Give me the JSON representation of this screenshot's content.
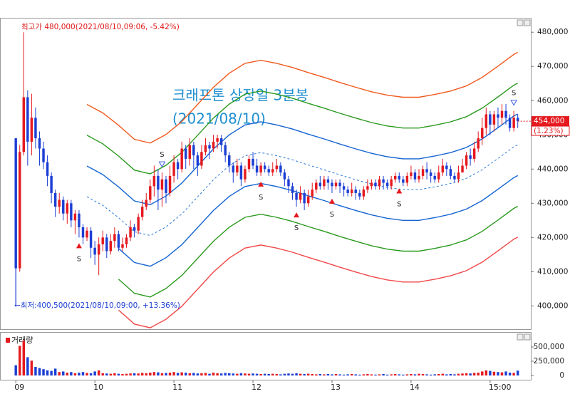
{
  "chart_data": {
    "type": "candlestick",
    "title": "크래프톤 상장일 3분봉",
    "subtitle": "(2021/08/10)",
    "annotations": {
      "high": "최고가 480,000(2021/08/10,09:06, -5.42%)",
      "low": "←최저:400,500(2021/08/10,09:00, +13.36%)"
    },
    "last_price": {
      "value": 454000,
      "label": "454,000"
    },
    "last_change": "(1.23%)",
    "up_color": "#e5191e",
    "down_color": "#1c3fd4",
    "xlim": [
      -4,
      130.3
    ],
    "xticks": [
      {
        "value": 0,
        "label": "09"
      },
      {
        "value": 20,
        "label": "10"
      },
      {
        "value": 40,
        "label": "11"
      },
      {
        "value": 60,
        "label": "12"
      },
      {
        "value": 80,
        "label": "13"
      },
      {
        "value": 100,
        "label": "14"
      },
      {
        "value": 120,
        "label": "15:00"
      }
    ],
    "ylim": [
      393000,
      484000
    ],
    "yticks": [
      {
        "value": 400000,
        "label": "400,000"
      },
      {
        "value": 410000,
        "label": "410,000"
      },
      {
        "value": 420000,
        "label": "420,000"
      },
      {
        "value": 430000,
        "label": "430,000"
      },
      {
        "value": 440000,
        "label": "440,000"
      },
      {
        "value": 450000,
        "label": "450,000"
      },
      {
        "value": 460000,
        "label": "460,000"
      },
      {
        "value": 470000,
        "label": "470,000"
      },
      {
        "value": 480000,
        "label": "480,000"
      }
    ],
    "ohlc": [
      [
        449000,
        449000,
        400500,
        411000
      ],
      [
        411000,
        447000,
        410000,
        445000
      ],
      [
        445000,
        480000,
        444000,
        461000
      ],
      [
        461000,
        463000,
        441000,
        448000
      ],
      [
        448000,
        462000,
        444000,
        455000
      ],
      [
        455000,
        458000,
        446000,
        449000
      ],
      [
        449000,
        451000,
        441000,
        446000
      ],
      [
        446000,
        448000,
        440000,
        442000
      ],
      [
        442000,
        444000,
        435000,
        438000
      ],
      [
        438000,
        439000,
        430000,
        433000
      ],
      [
        433000,
        434000,
        426000,
        429000
      ],
      [
        429000,
        433000,
        427000,
        431000
      ],
      [
        431000,
        432000,
        425000,
        427000
      ],
      [
        427000,
        431000,
        424000,
        430000
      ],
      [
        430000,
        431000,
        423000,
        425000
      ],
      [
        425000,
        428000,
        421000,
        427000
      ],
      [
        427000,
        428000,
        420000,
        423000
      ],
      [
        423000,
        424000,
        418000,
        420000
      ],
      [
        420000,
        423000,
        419000,
        422000
      ],
      [
        422000,
        423000,
        414000,
        417000
      ],
      [
        417000,
        419000,
        412000,
        415000
      ],
      [
        415000,
        420000,
        409000,
        418000
      ],
      [
        418000,
        422000,
        416000,
        420000
      ],
      [
        420000,
        421000,
        414000,
        416000
      ],
      [
        416000,
        421000,
        415000,
        419000
      ],
      [
        419000,
        423000,
        417000,
        421000
      ],
      [
        421000,
        422000,
        416000,
        417000
      ],
      [
        417000,
        420000,
        416000,
        418000
      ],
      [
        418000,
        421000,
        417000,
        420000
      ],
      [
        420000,
        425000,
        419000,
        423000
      ],
      [
        423000,
        424000,
        420000,
        422000
      ],
      [
        422000,
        427000,
        421000,
        426000
      ],
      [
        426000,
        431000,
        425000,
        429000
      ],
      [
        429000,
        433000,
        428000,
        431000
      ],
      [
        431000,
        437000,
        430000,
        435000
      ],
      [
        435000,
        441000,
        432000,
        438000
      ],
      [
        438000,
        440000,
        428000,
        434000
      ],
      [
        434000,
        439000,
        429000,
        437000
      ],
      [
        437000,
        438000,
        430000,
        433000
      ],
      [
        433000,
        441000,
        432000,
        438000
      ],
      [
        438000,
        444000,
        436000,
        442000
      ],
      [
        442000,
        443000,
        437000,
        440000
      ],
      [
        440000,
        448000,
        439000,
        446000
      ],
      [
        446000,
        447000,
        440000,
        443000
      ],
      [
        443000,
        449000,
        441000,
        447000
      ],
      [
        447000,
        448000,
        440000,
        444000
      ],
      [
        444000,
        445000,
        438000,
        441000
      ],
      [
        441000,
        447000,
        440000,
        445000
      ],
      [
        445000,
        449000,
        444000,
        447000
      ],
      [
        447000,
        448000,
        443000,
        446000
      ],
      [
        446000,
        450000,
        445000,
        448000
      ],
      [
        448000,
        450000,
        446000,
        449000
      ],
      [
        449000,
        450000,
        445000,
        447000
      ],
      [
        447000,
        448000,
        442000,
        444000
      ],
      [
        444000,
        445000,
        439000,
        441000
      ],
      [
        441000,
        442000,
        436000,
        439000
      ],
      [
        439000,
        443000,
        438000,
        441000
      ],
      [
        441000,
        442000,
        435000,
        437000
      ],
      [
        437000,
        441000,
        436000,
        440000
      ],
      [
        440000,
        444000,
        439000,
        443000
      ],
      [
        443000,
        445000,
        440000,
        441000
      ],
      [
        441000,
        443000,
        438000,
        439000
      ],
      [
        439000,
        442000,
        438000,
        441000
      ],
      [
        441000,
        442000,
        439000,
        440000
      ],
      [
        440000,
        441000,
        438000,
        439000
      ],
      [
        439000,
        442000,
        438000,
        440000
      ],
      [
        440000,
        443000,
        439000,
        441000
      ],
      [
        441000,
        442000,
        438000,
        439000
      ],
      [
        439000,
        440000,
        435000,
        437000
      ],
      [
        437000,
        438000,
        433000,
        435000
      ],
      [
        435000,
        436000,
        431000,
        433000
      ],
      [
        433000,
        434000,
        429000,
        431000
      ],
      [
        431000,
        435000,
        430000,
        433000
      ],
      [
        433000,
        434000,
        428000,
        430000
      ],
      [
        430000,
        434000,
        429000,
        432000
      ],
      [
        432000,
        436000,
        431000,
        434000
      ],
      [
        434000,
        437000,
        433000,
        436000
      ],
      [
        436000,
        438000,
        434000,
        435000
      ],
      [
        435000,
        438000,
        434000,
        437000
      ],
      [
        437000,
        438000,
        434000,
        436000
      ],
      [
        436000,
        437000,
        433000,
        435000
      ],
      [
        435000,
        437000,
        434000,
        436000
      ],
      [
        436000,
        437000,
        433000,
        435000
      ],
      [
        435000,
        436000,
        432000,
        434000
      ],
      [
        434000,
        435000,
        432000,
        433000
      ],
      [
        433000,
        436000,
        432000,
        434000
      ],
      [
        434000,
        435000,
        431000,
        433000
      ],
      [
        433000,
        434000,
        431000,
        432000
      ],
      [
        432000,
        435000,
        431000,
        434000
      ],
      [
        434000,
        437000,
        433000,
        435000
      ],
      [
        435000,
        437000,
        434000,
        436000
      ],
      [
        436000,
        437000,
        434000,
        435000
      ],
      [
        435000,
        438000,
        434000,
        437000
      ],
      [
        437000,
        438000,
        434000,
        436000
      ],
      [
        436000,
        437000,
        434000,
        435000
      ],
      [
        435000,
        438000,
        434000,
        437000
      ],
      [
        437000,
        439000,
        436000,
        438000
      ],
      [
        438000,
        439000,
        436000,
        437000
      ],
      [
        437000,
        438000,
        435000,
        436000
      ],
      [
        436000,
        439000,
        435000,
        438000
      ],
      [
        438000,
        441000,
        437000,
        439000
      ],
      [
        439000,
        440000,
        436000,
        437000
      ],
      [
        437000,
        440000,
        436000,
        438000
      ],
      [
        438000,
        441000,
        437000,
        440000
      ],
      [
        440000,
        442000,
        437000,
        439000
      ],
      [
        439000,
        440000,
        436000,
        438000
      ],
      [
        438000,
        439000,
        436000,
        437000
      ],
      [
        437000,
        441000,
        436000,
        439000
      ],
      [
        439000,
        443000,
        438000,
        441000
      ],
      [
        441000,
        442000,
        438000,
        440000
      ],
      [
        440000,
        441000,
        437000,
        438000
      ],
      [
        438000,
        439000,
        436000,
        437000
      ],
      [
        437000,
        441000,
        436000,
        439000
      ],
      [
        439000,
        443000,
        439000,
        441000
      ],
      [
        441000,
        445000,
        440000,
        444000
      ],
      [
        444000,
        446000,
        441000,
        443000
      ],
      [
        443000,
        448000,
        442000,
        446000
      ],
      [
        446000,
        451000,
        445000,
        449000
      ],
      [
        449000,
        455000,
        447000,
        452000
      ],
      [
        452000,
        458000,
        450000,
        456000
      ],
      [
        456000,
        457000,
        450000,
        453000
      ],
      [
        453000,
        457000,
        451000,
        456000
      ],
      [
        456000,
        458000,
        452000,
        455000
      ],
      [
        455000,
        459000,
        453000,
        457000
      ],
      [
        457000,
        459000,
        453000,
        455000
      ],
      [
        455000,
        456000,
        451000,
        452000
      ],
      [
        452000,
        457000,
        451000,
        455000
      ],
      [
        455000,
        456000,
        452000,
        454000
      ]
    ],
    "bands": {
      "x": [
        18,
        22,
        26,
        30,
        34,
        38,
        42,
        46,
        50,
        54,
        58,
        62,
        66,
        70,
        74,
        78,
        82,
        86,
        90,
        94,
        98,
        102,
        106,
        110,
        114,
        118,
        122,
        126,
        127
      ],
      "series": [
        {
          "color": "#f05a1e",
          "values": [
            458900,
            456400,
            452800,
            448700,
            447600,
            450100,
            453900,
            458900,
            463900,
            468000,
            470900,
            471800,
            470900,
            469700,
            468200,
            466800,
            465300,
            463900,
            462600,
            461600,
            461000,
            461000,
            461800,
            462800,
            464300,
            466800,
            470100,
            473500,
            474100
          ]
        },
        {
          "color": "#2a9a1e",
          "values": [
            449900,
            447400,
            443800,
            439700,
            438600,
            441100,
            444900,
            449900,
            454900,
            459000,
            461900,
            462800,
            461900,
            460700,
            459200,
            457800,
            456300,
            454900,
            453600,
            452600,
            452000,
            452000,
            452800,
            453800,
            455300,
            457800,
            461100,
            464500,
            465100
          ]
        },
        {
          "color": "#1464d2",
          "values": [
            440900,
            438400,
            434800,
            430700,
            429600,
            432100,
            435900,
            440900,
            445900,
            450000,
            452900,
            453800,
            452900,
            451700,
            450200,
            448800,
            447300,
            445900,
            444600,
            443600,
            443000,
            443000,
            443800,
            444800,
            446300,
            448800,
            452100,
            455500,
            456100
          ]
        },
        {
          "color": "#2a7ad8",
          "dashed": true,
          "values": [
            431900,
            429400,
            425800,
            421700,
            420600,
            423100,
            426900,
            431900,
            436900,
            441000,
            443900,
            444800,
            443900,
            442700,
            441200,
            439800,
            438300,
            436900,
            435600,
            434600,
            434000,
            434000,
            434800,
            435800,
            437300,
            439800,
            443100,
            446500,
            447100
          ]
        },
        {
          "color": "#1464d2",
          "values": [
            null,
            null,
            416800,
            412700,
            411600,
            414100,
            417900,
            422900,
            427900,
            432000,
            434900,
            435800,
            434900,
            433700,
            432200,
            430800,
            429300,
            427900,
            426600,
            425600,
            425000,
            425000,
            425800,
            426800,
            428300,
            430800,
            434100,
            437500,
            438100
          ]
        },
        {
          "color": "#2a9a1e",
          "values": [
            null,
            null,
            407800,
            403700,
            402600,
            405100,
            408900,
            413900,
            418900,
            423000,
            425900,
            426800,
            425900,
            424700,
            423200,
            421800,
            420300,
            418900,
            417600,
            416600,
            416000,
            416000,
            416800,
            417800,
            419300,
            421800,
            425100,
            428500,
            429100
          ]
        },
        {
          "color": "#f04848",
          "values": [
            null,
            null,
            398800,
            394700,
            393600,
            396100,
            399900,
            404900,
            409900,
            414000,
            416900,
            417800,
            416900,
            415700,
            414200,
            412800,
            411300,
            409900,
            408600,
            407600,
            407000,
            407000,
            407800,
            408800,
            410300,
            412800,
            416100,
            419500,
            420100
          ]
        }
      ]
    },
    "signals": {
      "label": "S",
      "buy": [
        16,
        62,
        71,
        80,
        97
      ],
      "sell": [
        37,
        126
      ],
      "buy_color": "#e5191e",
      "sell_color": "#3f5fe0"
    },
    "volume": {
      "name": "거래량",
      "ylim": [
        0,
        750000
      ],
      "yticks": [
        0,
        {
          "value": 250000,
          "label": "250,000"
        },
        {
          "value": 500000,
          "label": "500,000"
        }
      ],
      "values": [
        180000,
        520000,
        610000,
        320000,
        260000,
        150000,
        130000,
        110000,
        90000,
        80000,
        120000,
        60000,
        70000,
        50000,
        60000,
        40000,
        50000,
        60000,
        45000,
        40000,
        70000,
        90000,
        40000,
        35000,
        30000,
        40000,
        30000,
        25000,
        30000,
        35000,
        40000,
        35000,
        45000,
        40000,
        50000,
        60000,
        55000,
        40000,
        45000,
        50000,
        60000,
        45000,
        55000,
        50000,
        40000,
        45000,
        35000,
        40000,
        45000,
        30000,
        50000,
        40000,
        35000,
        45000,
        40000,
        35000,
        30000,
        40000,
        35000,
        30000,
        35000,
        30000,
        25000,
        30000,
        25000,
        30000,
        25000,
        20000,
        30000,
        35000,
        30000,
        40000,
        30000,
        25000,
        30000,
        25000,
        20000,
        25000,
        20000,
        25000,
        20000,
        25000,
        20000,
        15000,
        20000,
        25000,
        20000,
        15000,
        20000,
        25000,
        20000,
        15000,
        20000,
        25000,
        15000,
        20000,
        25000,
        20000,
        15000,
        20000,
        25000,
        20000,
        30000,
        25000,
        20000,
        15000,
        20000,
        25000,
        30000,
        20000,
        25000,
        20000,
        30000,
        35000,
        40000,
        35000,
        45000,
        50000,
        70000,
        90000,
        80000,
        65000,
        60000,
        55000,
        70000,
        50000,
        45000,
        85000
      ]
    }
  }
}
